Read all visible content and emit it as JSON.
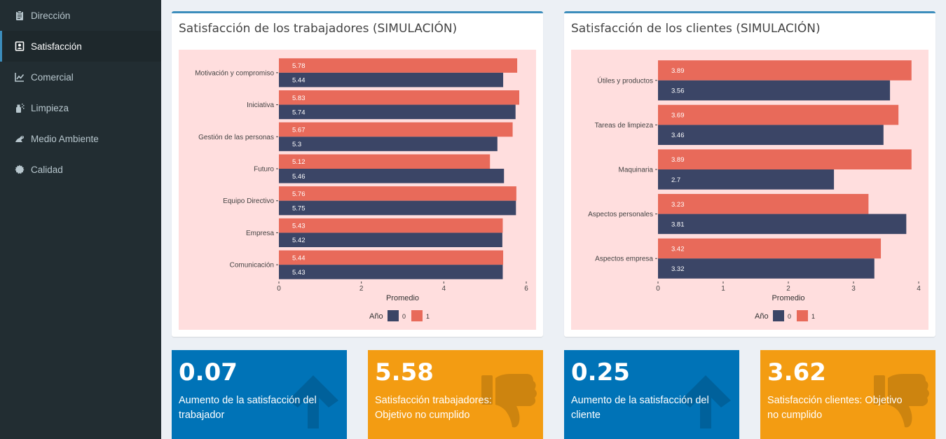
{
  "sidebar": {
    "items": [
      {
        "label": "Dirección",
        "icon": "clipboard-icon",
        "active": false
      },
      {
        "label": "Satisfacción",
        "icon": "id-card-icon",
        "active": true
      },
      {
        "label": "Comercial",
        "icon": "line-chart-icon",
        "active": false
      },
      {
        "label": "Limpieza",
        "icon": "spray-icon",
        "active": false
      },
      {
        "label": "Medio Ambiente",
        "icon": "frog-icon",
        "active": false
      },
      {
        "label": "Calidad",
        "icon": "certificate-icon",
        "active": false
      }
    ]
  },
  "panels": {
    "workers": {
      "title": "Satisfacción de los trabajadores (SIMULACIÓN)"
    },
    "clients": {
      "title": "Satisfacción de los clientes (SIMULACIÓN)"
    }
  },
  "chart_data": [
    {
      "type": "bar",
      "orientation": "horizontal",
      "categories": [
        "Motivación y compromiso",
        "Iniciativa",
        "Gestión de las personas",
        "Futuro",
        "Equipo Directivo",
        "Empresa",
        "Comunicación"
      ],
      "series": [
        {
          "name": "0",
          "color": "#3b4566",
          "values": [
            5.44,
            5.74,
            5.3,
            5.46,
            5.75,
            5.42,
            5.43
          ]
        },
        {
          "name": "1",
          "color": "#e86a5a",
          "values": [
            5.78,
            5.83,
            5.67,
            5.12,
            5.76,
            5.43,
            5.44
          ]
        }
      ],
      "xlabel": "Promedio",
      "xlim": [
        0,
        6
      ],
      "xticks": [
        0,
        2,
        4,
        6
      ],
      "legend_title": "Año",
      "legend_position": "bottom",
      "background": "#ffdede"
    },
    {
      "type": "bar",
      "orientation": "horizontal",
      "categories": [
        "Útiles y productos",
        "Tareas de limpieza",
        "Maquinaria",
        "Aspectos personales",
        "Aspectos empresa"
      ],
      "series": [
        {
          "name": "0",
          "color": "#3b4566",
          "values": [
            3.56,
            3.46,
            2.7,
            3.81,
            3.32
          ]
        },
        {
          "name": "1",
          "color": "#e86a5a",
          "values": [
            3.89,
            3.69,
            3.89,
            3.23,
            3.42
          ]
        }
      ],
      "xlabel": "Promedio",
      "xlim": [
        0,
        4
      ],
      "xticks": [
        0,
        1,
        2,
        3,
        4
      ],
      "legend_title": "Año",
      "legend_position": "bottom",
      "background": "#ffdede"
    }
  ],
  "infoboxes": [
    {
      "value": "0.07",
      "label": "Aumento de la satisfacción del trabajador",
      "color": "#0073b7",
      "icon": "arrow-up-icon"
    },
    {
      "value": "5.58",
      "label": "Satisfacción trabajadores: Objetivo no cumplido",
      "color": "#f39c12",
      "icon": "thumbs-down-icon"
    },
    {
      "value": "0.25",
      "label": "Aumento de la satisfacción del cliente",
      "color": "#0073b7",
      "icon": "arrow-up-icon"
    },
    {
      "value": "3.62",
      "label": "Satisfacción clientes: Objetivo no cumplido",
      "color": "#f39c12",
      "icon": "thumbs-down-icon"
    }
  ]
}
